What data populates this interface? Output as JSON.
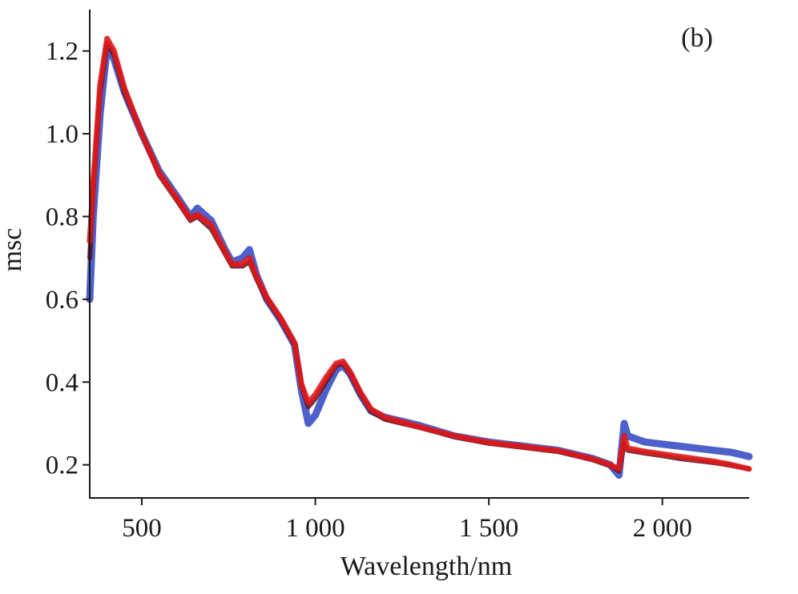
{
  "chart_data": {
    "type": "line",
    "panel_label": "(b)",
    "xlabel": "Wavelength/nm",
    "ylabel": "msc",
    "xlim": [
      350,
      2250
    ],
    "ylim": [
      0.12,
      1.3
    ],
    "x_ticks": [
      500,
      1000,
      1500,
      2000
    ],
    "x_tick_labels": [
      "500",
      "1 000",
      "1 500",
      "2 000"
    ],
    "y_ticks": [
      0.2,
      0.4,
      0.6,
      0.8,
      1.0,
      1.2
    ],
    "y_tick_labels": [
      "0.2",
      "0.4",
      "0.6",
      "0.8",
      "1.0",
      "1.2"
    ],
    "grid": false,
    "legend": "none",
    "colors": {
      "blue": "#3b4fc4",
      "red": "#e01a1a",
      "dark": "#5a1020"
    },
    "series": [
      {
        "color": "#3b4fc4",
        "x": [
          350,
          360,
          380,
          400,
          420,
          450,
          500,
          550,
          600,
          640,
          660,
          700,
          740,
          760,
          790,
          810,
          830,
          860,
          900,
          940,
          960,
          980,
          1000,
          1030,
          1060,
          1080,
          1100,
          1130,
          1160,
          1200,
          1300,
          1400,
          1500,
          1600,
          1700,
          1800,
          1850,
          1875,
          1890,
          1900,
          1950,
          2000,
          2050,
          2100,
          2150,
          2200,
          2250
        ],
        "y": [
          0.6,
          0.8,
          1.05,
          1.21,
          1.18,
          1.1,
          1.0,
          0.91,
          0.85,
          0.8,
          0.82,
          0.79,
          0.72,
          0.69,
          0.7,
          0.72,
          0.66,
          0.6,
          0.55,
          0.49,
          0.38,
          0.3,
          0.32,
          0.38,
          0.43,
          0.44,
          0.42,
          0.37,
          0.33,
          0.315,
          0.295,
          0.27,
          0.255,
          0.245,
          0.235,
          0.215,
          0.2,
          0.175,
          0.3,
          0.27,
          0.255,
          0.25,
          0.245,
          0.24,
          0.235,
          0.23,
          0.22
        ]
      },
      {
        "color": "#5a1020",
        "x": [
          350,
          360,
          380,
          400,
          420,
          450,
          500,
          550,
          600,
          640,
          660,
          700,
          740,
          760,
          790,
          810,
          830,
          860,
          900,
          940,
          960,
          980,
          1000,
          1030,
          1060,
          1080,
          1100,
          1130,
          1160,
          1200,
          1300,
          1400,
          1500,
          1600,
          1700,
          1800,
          1850,
          1875,
          1890,
          1900,
          1950,
          2000,
          2050,
          2100,
          2150,
          2200,
          2250
        ],
        "y": [
          0.7,
          0.86,
          1.1,
          1.22,
          1.19,
          1.1,
          1.0,
          0.9,
          0.84,
          0.79,
          0.8,
          0.77,
          0.71,
          0.68,
          0.68,
          0.69,
          0.65,
          0.6,
          0.55,
          0.49,
          0.39,
          0.34,
          0.36,
          0.4,
          0.44,
          0.445,
          0.42,
          0.37,
          0.33,
          0.31,
          0.29,
          0.268,
          0.252,
          0.242,
          0.232,
          0.212,
          0.198,
          0.185,
          0.25,
          0.235,
          0.228,
          0.222,
          0.215,
          0.21,
          0.205,
          0.198,
          0.19
        ]
      },
      {
        "color": "#e01a1a",
        "x": [
          350,
          360,
          380,
          400,
          420,
          450,
          500,
          550,
          600,
          640,
          660,
          700,
          740,
          760,
          790,
          810,
          830,
          860,
          900,
          940,
          960,
          980,
          1000,
          1030,
          1060,
          1080,
          1100,
          1130,
          1160,
          1200,
          1300,
          1400,
          1500,
          1600,
          1700,
          1800,
          1850,
          1875,
          1890,
          1900,
          1950,
          2000,
          2050,
          2100,
          2150,
          2200,
          2250
        ],
        "y": [
          0.74,
          0.88,
          1.12,
          1.23,
          1.2,
          1.11,
          1.0,
          0.905,
          0.845,
          0.795,
          0.805,
          0.78,
          0.715,
          0.685,
          0.685,
          0.7,
          0.655,
          0.605,
          0.555,
          0.495,
          0.395,
          0.35,
          0.37,
          0.41,
          0.445,
          0.45,
          0.425,
          0.375,
          0.335,
          0.315,
          0.292,
          0.27,
          0.254,
          0.244,
          0.234,
          0.214,
          0.2,
          0.19,
          0.27,
          0.24,
          0.232,
          0.226,
          0.22,
          0.214,
          0.208,
          0.2,
          0.19
        ]
      }
    ]
  }
}
